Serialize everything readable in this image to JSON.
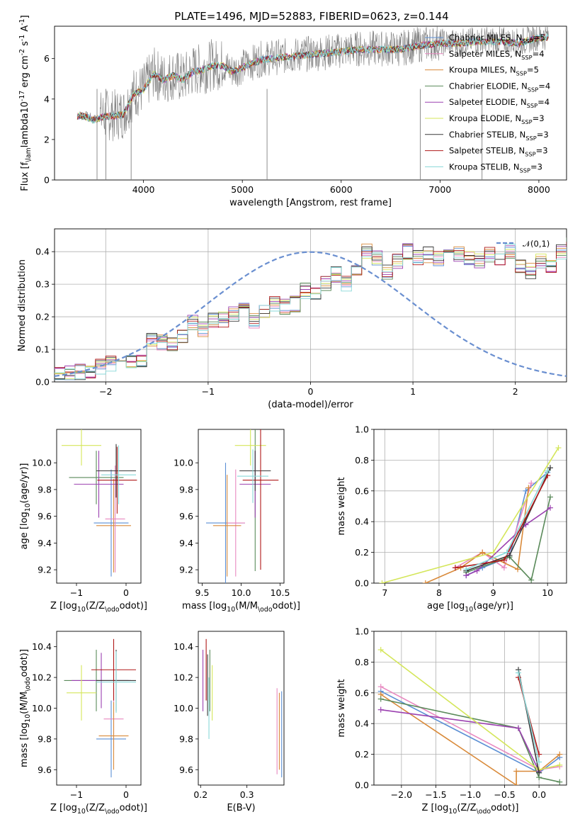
{
  "title": "PLATE=1496, MJD=52883, FIBERID=0623, z=0.144",
  "models": [
    {
      "name": "Chabrier MILES, N$_{SSP}$=5",
      "color": "#5b8fd4"
    },
    {
      "name": "Salpeter MILES, N$_{SSP}$=4",
      "color": "#e888c0"
    },
    {
      "name": "Kroupa MILES, N$_{SSP}$=5",
      "color": "#d98a3a"
    },
    {
      "name": "Chabrier ELODIE, N$_{SSP}$=4",
      "color": "#5a8a5a"
    },
    {
      "name": "Salpeter ELODIE, N$_{SSP}$=4",
      "color": "#9b40b0"
    },
    {
      "name": "Kroupa ELODIE, N$_{SSP}$=3",
      "color": "#d4e65a"
    },
    {
      "name": "Chabrier STELIB, N$_{SSP}$=3",
      "color": "#3a3a3a"
    },
    {
      "name": "Salpeter STELIB, N$_{SSP}$=3",
      "color": "#b01818"
    },
    {
      "name": "Kroupa STELIB, N$_{SSP}$=3",
      "color": "#88d8d8"
    }
  ],
  "chart_data": [
    {
      "id": "spectrum",
      "type": "line",
      "xlabel": "wavelength [Angstrom, rest frame]",
      "ylabel": "Flux [f$_\\lambda$10$^{-17}$ erg cm$^{-2}$ s$^{-1}$ A$^{-1}$]",
      "xlim": [
        3100,
        8280
      ],
      "ylim": [
        0,
        7.6
      ],
      "xticks": [
        4000,
        5000,
        6000,
        7000,
        8000
      ],
      "yticks": [
        0,
        2,
        4,
        6
      ],
      "data_color": "#808080",
      "spectrum_x": [
        3330,
        3400,
        3500,
        3600,
        3700,
        3800,
        3900,
        4000,
        4100,
        4200,
        4300,
        4400,
        4500,
        4600,
        4700,
        4800,
        4900,
        5000,
        5200,
        5400,
        5600,
        5800,
        6000,
        6200,
        6400,
        6600,
        6800,
        7000,
        7200,
        7400,
        7600,
        7800,
        8000,
        8100
      ],
      "spectrum_y": [
        3.2,
        3.2,
        3.0,
        3.2,
        3.2,
        3.3,
        4.3,
        4.5,
        5.3,
        5.0,
        5.2,
        5.0,
        5.4,
        5.5,
        5.7,
        5.7,
        5.4,
        5.6,
        6.0,
        6.1,
        6.2,
        6.3,
        6.4,
        6.5,
        6.5,
        6.5,
        6.7,
        6.8,
        6.8,
        6.9,
        6.9,
        6.8,
        7.1,
        7.1
      ]
    },
    {
      "id": "residuals",
      "type": "line",
      "xlabel": "(data-model)/error",
      "ylabel": "Normed distribution",
      "xlim": [
        -2.5,
        2.5
      ],
      "ylim": [
        0,
        0.47
      ],
      "xticks": [
        -2,
        -1,
        0,
        1,
        2
      ],
      "yticks": [
        0.0,
        0.1,
        0.2,
        0.3,
        0.4
      ],
      "grid": true,
      "legend": "$\\mathcal{N}(0,1)$",
      "normal_color": "#6a8fd0",
      "bin_width": 0.1,
      "bin_start": -2.5,
      "hist_base": [
        0.02,
        0.025,
        0.03,
        0.035,
        0.045,
        0.055,
        0.05,
        0.06,
        0.07,
        0.13,
        0.12,
        0.12,
        0.14,
        0.18,
        0.16,
        0.19,
        0.19,
        0.21,
        0.22,
        0.19,
        0.22,
        0.24,
        0.23,
        0.24,
        0.28,
        0.27,
        0.3,
        0.33,
        0.3,
        0.34,
        0.4,
        0.38,
        0.34,
        0.37,
        0.4,
        0.38,
        0.39,
        0.38,
        0.4,
        0.39,
        0.38,
        0.37,
        0.39,
        0.38,
        0.4,
        0.35,
        0.34,
        0.37,
        0.36,
        0.4,
        0.42,
        0.39,
        0.4,
        0.38,
        0.37,
        0.36,
        0.32,
        0.33,
        0.3,
        0.32,
        0.28,
        0.24,
        0.22,
        0.21,
        0.19,
        0.16,
        0.2,
        0.17,
        0.14,
        0.16,
        0.13,
        0.11,
        0.1,
        0.08,
        0.08,
        0.075,
        0.07,
        0.08,
        0.09,
        0.07,
        0.07,
        0.06,
        0.05,
        0.05,
        0.04,
        0.035,
        0.03,
        0.03,
        0.02,
        0.025,
        0.02,
        0.02,
        0.025,
        0.02,
        0.025,
        0.02,
        0.02,
        0.025,
        0.02,
        0.02
      ]
    },
    {
      "id": "z-vs-age",
      "type": "scatter",
      "xlabel": "Z [log$_{10}$(Z/Z$_\\odot$)]",
      "ylabel": "age  [log$_{10}$(age/yr)]",
      "xlim": [
        -1.4,
        0.3
      ],
      "ylim": [
        9.1,
        10.25
      ],
      "xticks": [
        -1,
        0
      ],
      "yticks": [
        9.2,
        9.4,
        9.6,
        9.8,
        10.0
      ],
      "xcoord": "Z",
      "series": [
        {
          "m": 0,
          "Z": -0.3,
          "age": 9.55,
          "ze": 0.35,
          "ae": 0.4
        },
        {
          "m": 2,
          "Z": -0.25,
          "age": 9.53,
          "ze": 0.35,
          "ae": 0.35
        },
        {
          "m": 1,
          "Z": -0.22,
          "age": 9.58,
          "ze": 0.2,
          "ae": 0.4
        },
        {
          "m": 5,
          "Z": -0.9,
          "age": 10.13,
          "ze": 0.4,
          "ae": 0.15
        },
        {
          "m": 3,
          "Z": -0.6,
          "age": 9.89,
          "ze": 0.55,
          "ae": 0.2
        },
        {
          "m": 4,
          "Z": -0.55,
          "age": 9.84,
          "ze": 0.5,
          "ae": 0.25
        },
        {
          "m": 6,
          "Z": -0.2,
          "age": 9.94,
          "ze": 0.4,
          "ae": 0.2
        },
        {
          "m": 7,
          "Z": -0.18,
          "age": 9.87,
          "ze": 0.4,
          "ae": 0.25
        },
        {
          "m": 8,
          "Z": -0.15,
          "age": 9.91,
          "ze": 0.35,
          "ae": 0.22
        }
      ]
    },
    {
      "id": "mass-vs-age",
      "type": "scatter",
      "xlabel": "mass [log$_{10}$(M/M$_\\odot$)]",
      "ylabel": "",
      "xlim": [
        9.45,
        10.55
      ],
      "ylim": [
        9.1,
        10.25
      ],
      "xticks": [
        9.5,
        10.0,
        10.5
      ],
      "yticks": [
        9.2,
        9.4,
        9.6,
        9.8,
        10.0
      ],
      "xcoord": "mass",
      "series": [
        {
          "m": 0,
          "mass": 9.8,
          "age": 9.55,
          "me": 0.25,
          "ae": 0.45
        },
        {
          "m": 1,
          "mass": 9.93,
          "age": 9.55,
          "me": 0.12,
          "ae": 0.4
        },
        {
          "m": 2,
          "mass": 9.82,
          "age": 9.53,
          "me": 0.18,
          "ae": 0.38
        },
        {
          "m": 3,
          "mass": 10.18,
          "age": 9.94,
          "me": 0.2,
          "ae": 0.75
        },
        {
          "m": 4,
          "mass": 10.18,
          "age": 9.84,
          "me": 0.2,
          "ae": 0.25
        },
        {
          "m": 5,
          "mass": 10.12,
          "age": 10.13,
          "me": 0.2,
          "ae": 0.15
        },
        {
          "m": 6,
          "mass": 10.18,
          "age": 9.94,
          "me": 0.2,
          "ae": 0.15
        },
        {
          "m": 7,
          "mass": 10.25,
          "age": 9.87,
          "me": 0.23,
          "ae": 0.67
        },
        {
          "m": 8,
          "mass": 10.15,
          "age": 9.9,
          "me": 0.2,
          "ae": 0.2
        }
      ]
    },
    {
      "id": "age-vs-weight",
      "type": "line",
      "xlabel": "age  [log$_{10}$(age/yr)]",
      "ylabel": "mass weight",
      "xlim": [
        6.8,
        10.35
      ],
      "ylim": [
        0,
        1.0
      ],
      "xticks": [
        7,
        8,
        9,
        10
      ],
      "yticks": [
        0.0,
        0.2,
        0.4,
        0.6,
        0.8,
        1.0
      ],
      "grid": true,
      "series": [
        {
          "m": 0,
          "x": [
            8.5,
            8.8,
            9.3,
            9.6,
            10.0
          ],
          "y": [
            0.05,
            0.1,
            0.17,
            0.6,
            0.72
          ]
        },
        {
          "m": 1,
          "x": [
            8.3,
            8.8,
            9.2,
            9.7
          ],
          "y": [
            0.1,
            0.2,
            0.1,
            0.65
          ]
        },
        {
          "m": 2,
          "x": [
            7.75,
            8.4,
            8.8,
            9.45,
            9.65
          ],
          "y": [
            0.0,
            0.1,
            0.2,
            0.09,
            0.62
          ]
        },
        {
          "m": 3,
          "x": [
            8.5,
            9.3,
            9.7,
            10.05
          ],
          "y": [
            0.07,
            0.17,
            0.02,
            0.56
          ]
        },
        {
          "m": 4,
          "x": [
            8.5,
            8.7,
            9.6,
            10.05
          ],
          "y": [
            0.05,
            0.08,
            0.38,
            0.49
          ]
        },
        {
          "m": 5,
          "x": [
            6.95,
            9.0,
            10.2
          ],
          "y": [
            0.0,
            0.2,
            0.88
          ]
        },
        {
          "m": 6,
          "x": [
            8.5,
            9.3,
            10.05
          ],
          "y": [
            0.08,
            0.18,
            0.75
          ]
        },
        {
          "m": 7,
          "x": [
            8.3,
            9.2,
            10.0
          ],
          "y": [
            0.1,
            0.15,
            0.7
          ]
        },
        {
          "m": 8,
          "x": [
            8.5,
            9.25,
            10.0
          ],
          "y": [
            0.09,
            0.2,
            0.73
          ]
        }
      ]
    },
    {
      "id": "z-vs-mass",
      "type": "scatter",
      "xlabel": "Z [log$_{10}$(Z/Z$_\\odot$)]",
      "ylabel": "mass [log$_{10}$(M/M$_\\odot$)]",
      "xlim": [
        -1.4,
        0.3
      ],
      "ylim": [
        9.5,
        10.5
      ],
      "xticks": [
        -1,
        0
      ],
      "yticks": [
        9.6,
        9.8,
        10.0,
        10.2,
        10.4
      ],
      "xcoord": "Z",
      "series": [
        {
          "m": 0,
          "Z": -0.3,
          "mass": 9.8,
          "ze": 0.3,
          "me": 0.25
        },
        {
          "m": 1,
          "Z": -0.25,
          "mass": 9.93,
          "ze": 0.2,
          "me": 0.2
        },
        {
          "m": 2,
          "Z": -0.25,
          "mass": 9.82,
          "ze": 0.3,
          "me": 0.22
        },
        {
          "m": 3,
          "Z": -0.6,
          "mass": 10.18,
          "ze": 0.65,
          "me": 0.2
        },
        {
          "m": 4,
          "Z": -0.5,
          "mass": 10.18,
          "ze": 0.6,
          "me": 0.18
        },
        {
          "m": 5,
          "Z": -0.9,
          "mass": 10.1,
          "ze": 0.3,
          "me": 0.18
        },
        {
          "m": 6,
          "Z": -0.2,
          "mass": 10.18,
          "ze": 0.4,
          "me": 0.2
        },
        {
          "m": 7,
          "Z": -0.25,
          "mass": 10.25,
          "ze": 0.45,
          "me": 0.2
        },
        {
          "m": 8,
          "Z": -0.2,
          "mass": 10.17,
          "ze": 0.4,
          "me": 0.2
        }
      ]
    },
    {
      "id": "ebv-vs-mass",
      "type": "scatter",
      "xlabel": "E(B-V)",
      "ylabel": "",
      "xlim": [
        0.195,
        0.38
      ],
      "ylim": [
        9.5,
        10.5
      ],
      "xticks": [
        0.2,
        0.3
      ],
      "yticks": [
        9.6,
        9.8,
        10.0,
        10.2,
        10.4
      ],
      "xcoord": "ebv",
      "series": [
        {
          "m": 0,
          "ebv": 0.375,
          "mass": 9.83,
          "me": 0.28
        },
        {
          "m": 1,
          "ebv": 0.365,
          "mass": 9.85,
          "me": 0.28
        },
        {
          "m": 2,
          "ebv": 0.37,
          "mass": 9.85,
          "me": 0.25
        },
        {
          "m": 3,
          "ebv": 0.22,
          "mass": 10.18,
          "me": 0.2
        },
        {
          "m": 4,
          "ebv": 0.205,
          "mass": 10.18,
          "me": 0.2
        },
        {
          "m": 5,
          "ebv": 0.225,
          "mass": 10.1,
          "me": 0.18
        },
        {
          "m": 6,
          "ebv": 0.215,
          "mass": 10.15,
          "me": 0.2
        },
        {
          "m": 7,
          "ebv": 0.212,
          "mass": 10.25,
          "me": 0.2
        },
        {
          "m": 8,
          "ebv": 0.218,
          "mass": 10.0,
          "me": 0.2
        }
      ]
    },
    {
      "id": "z-vs-weight",
      "type": "line",
      "xlabel": "Z [log$_{10}$(Z/Z$_\\odot$)]",
      "ylabel": "mass weight",
      "xlim": [
        -2.4,
        0.4
      ],
      "ylim": [
        0,
        1.0
      ],
      "xticks": [
        -2.0,
        -1.5,
        -1.0,
        -0.5,
        0.0
      ],
      "yticks": [
        0.0,
        0.2,
        0.4,
        0.6,
        0.8,
        1.0
      ],
      "grid": true,
      "series": [
        {
          "m": 0,
          "x": [
            -2.3,
            0.0,
            0.3
          ],
          "y": [
            0.61,
            0.08,
            0.18
          ]
        },
        {
          "m": 1,
          "x": [
            -2.3,
            0.0,
            0.3
          ],
          "y": [
            0.64,
            0.1,
            0.12
          ]
        },
        {
          "m": 2,
          "x": [
            -2.3,
            -0.33,
            -0.33,
            0.0,
            0.3
          ],
          "y": [
            0.59,
            0.0,
            0.09,
            0.09,
            0.2
          ]
        },
        {
          "m": 3,
          "x": [
            -2.3,
            -0.3,
            0.0,
            0.3
          ],
          "y": [
            0.56,
            0.37,
            0.05,
            0.02
          ]
        },
        {
          "m": 4,
          "x": [
            -2.3,
            -0.3,
            0.0
          ],
          "y": [
            0.49,
            0.37,
            0.09
          ]
        },
        {
          "m": 5,
          "x": [
            -2.3,
            0.0,
            0.3
          ],
          "y": [
            0.88,
            0.1,
            0.13
          ]
        },
        {
          "m": 6,
          "x": [
            -0.3,
            0.0
          ],
          "y": [
            0.75,
            0.08
          ]
        },
        {
          "m": 7,
          "x": [
            -0.3,
            0.0
          ],
          "y": [
            0.7,
            0.2
          ]
        },
        {
          "m": 8,
          "x": [
            -0.3,
            0.0
          ],
          "y": [
            0.73,
            0.15
          ]
        }
      ]
    }
  ]
}
